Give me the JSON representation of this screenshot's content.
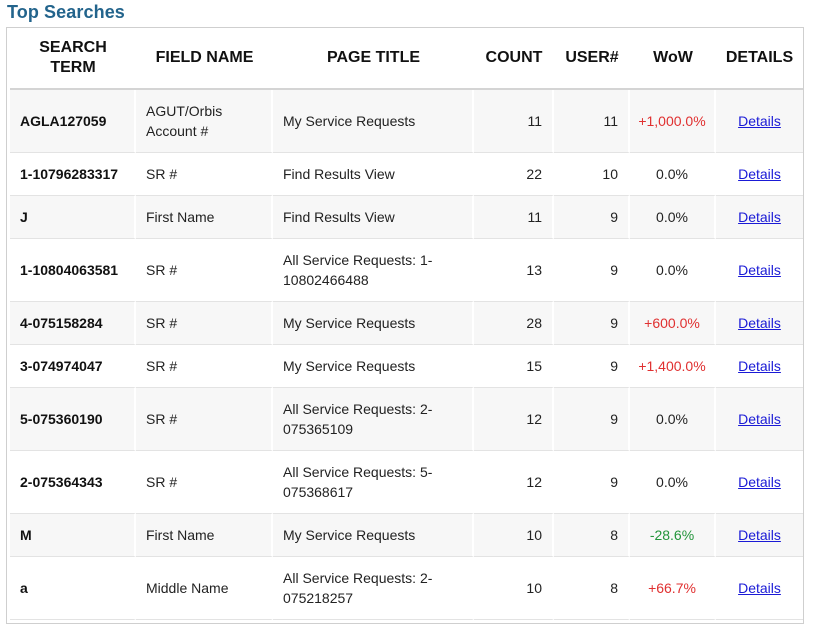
{
  "title": "Top Searches",
  "columns": {
    "search_term": "SEARCH TERM",
    "field_name": "FIELD NAME",
    "page_title": "PAGE TITLE",
    "count": "COUNT",
    "users": "USER#",
    "wow": "WoW",
    "details": "DETAILS"
  },
  "colors": {
    "title": "#23648c",
    "positive_change": "#e03030",
    "negative_change": "#22943a",
    "link": "#1a1ad6",
    "row_alt": "#f7f7f7"
  },
  "rows": [
    {
      "term": "AGLA127059",
      "field": "AGUT/Orbis Account #",
      "page": "My Service Requests",
      "count": "11",
      "users": "11",
      "wow": "+1,000.0%",
      "trend": "up",
      "details": "Details"
    },
    {
      "term": "1-10796283317",
      "field": "SR #",
      "page": "Find Results View",
      "count": "22",
      "users": "10",
      "wow": "0.0%",
      "trend": "flat",
      "details": "Details"
    },
    {
      "term": "J",
      "field": "First Name",
      "page": "Find Results View",
      "count": "11",
      "users": "9",
      "wow": "0.0%",
      "trend": "flat",
      "details": "Details"
    },
    {
      "term": "1-10804063581",
      "field": "SR #",
      "page": "All Service Requests: 1-10802466488",
      "count": "13",
      "users": "9",
      "wow": "0.0%",
      "trend": "flat",
      "details": "Details"
    },
    {
      "term": "4-075158284",
      "field": "SR #",
      "page": "My Service Requests",
      "count": "28",
      "users": "9",
      "wow": "+600.0%",
      "trend": "up",
      "details": "Details"
    },
    {
      "term": "3-074974047",
      "field": "SR #",
      "page": "My Service Requests",
      "count": "15",
      "users": "9",
      "wow": "+1,400.0%",
      "trend": "up",
      "details": "Details"
    },
    {
      "term": "5-075360190",
      "field": "SR #",
      "page": "All Service Requests: 2-075365109",
      "count": "12",
      "users": "9",
      "wow": "0.0%",
      "trend": "flat",
      "details": "Details"
    },
    {
      "term": "2-075364343",
      "field": "SR #",
      "page": "All Service Requests: 5-075368617",
      "count": "12",
      "users": "9",
      "wow": "0.0%",
      "trend": "flat",
      "details": "Details"
    },
    {
      "term": "M",
      "field": "First Name",
      "page": "My Service Requests",
      "count": "10",
      "users": "8",
      "wow": "-28.6%",
      "trend": "down",
      "details": "Details"
    },
    {
      "term": "a",
      "field": "Middle Name",
      "page": "All Service Requests: 2-075218257",
      "count": "10",
      "users": "8",
      "wow": "+66.7%",
      "trend": "up",
      "details": "Details"
    }
  ]
}
